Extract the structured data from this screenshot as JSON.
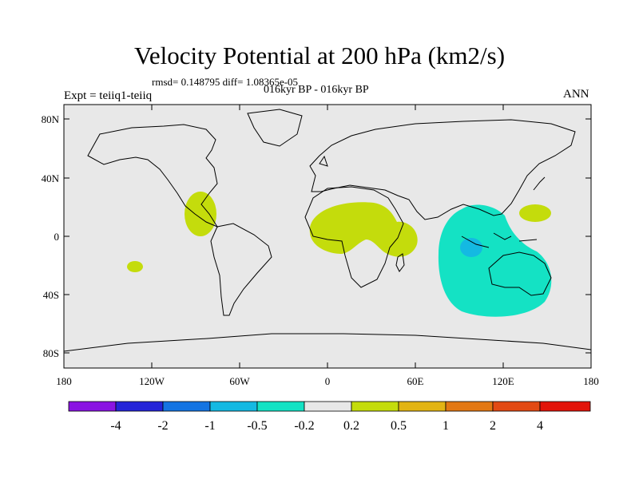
{
  "title": "Velocity Potential at 200 hPa (km2/s)",
  "stats": "rmsd= 0.148795 diff= 1.08365e-05",
  "period": "016kyr BP - 016kyr BP",
  "expt": "Expt = teiiq1-teiiq",
  "season": "ANN",
  "colors": {
    "background": "#e8e8e8",
    "land_outline": "#000000",
    "positive_light": "#c4dc0c",
    "negative_light": "#14e2c4",
    "negative_mid": "#14b9e2"
  },
  "axes": {
    "lon_ticks": [
      "180",
      "120W",
      "60W",
      "0",
      "60E",
      "120E",
      "180"
    ],
    "lat_ticks": [
      "80N",
      "40N",
      "0",
      "40S",
      "80S"
    ]
  },
  "colorbar": {
    "colors": [
      "#8a14e2",
      "#2424d8",
      "#1474e2",
      "#14b9e2",
      "#14e2c4",
      "#e8e8e8",
      "#c4dc0c",
      "#e2b414",
      "#e27814",
      "#e24a14",
      "#e2140a"
    ],
    "labels": [
      "-4",
      "-2",
      "-1",
      "-0.5",
      "-0.2",
      "0.2",
      "0.5",
      "1",
      "2",
      "4"
    ]
  }
}
